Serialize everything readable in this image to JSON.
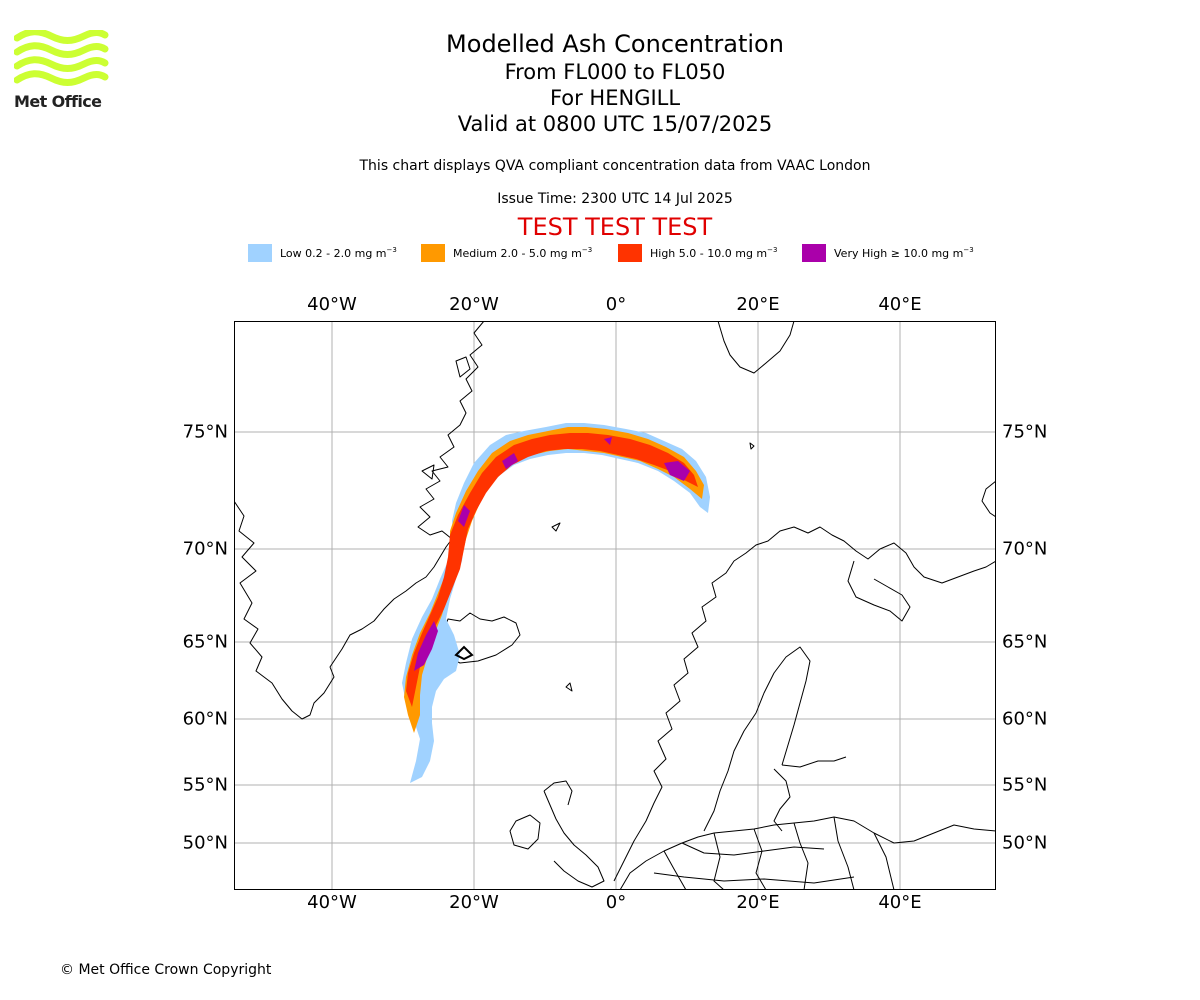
{
  "logo": {
    "text": "Met Office",
    "color": "#ccff33"
  },
  "title": {
    "main": "Modelled Ash Concentration",
    "levels": "From FL000 to FL050",
    "location": "For HENGILL",
    "valid": "Valid at 0800 UTC 15/07/2025"
  },
  "subtitle": "This chart displays QVA compliant concentration data from VAAC London",
  "issue_time": "Issue Time: 2300 UTC 14 Jul 2025",
  "banner": "TEST TEST TEST",
  "legend": [
    {
      "label": "Low 0.2 - 2.0 mg m",
      "unit_power": "−3",
      "color": "#a0d2ff"
    },
    {
      "label": "Medium 2.0 - 5.0 mg m",
      "unit_power": "−3",
      "color": "#ff9900"
    },
    {
      "label": "High 5.0 - 10.0 mg m",
      "unit_power": "−3",
      "color": "#ff3300"
    },
    {
      "label": "Very High  ≥  10.0 mg m",
      "unit_power": "−3",
      "color": "#aa00aa"
    }
  ],
  "map": {
    "lon_labels": [
      "40°W",
      "20°W",
      "0°",
      "20°E",
      "40°E"
    ],
    "lat_labels": [
      "75°N",
      "70°N",
      "65°N",
      "60°N",
      "55°N",
      "50°N"
    ],
    "grid": true
  },
  "copyright": "© Met Office Crown Copyright"
}
